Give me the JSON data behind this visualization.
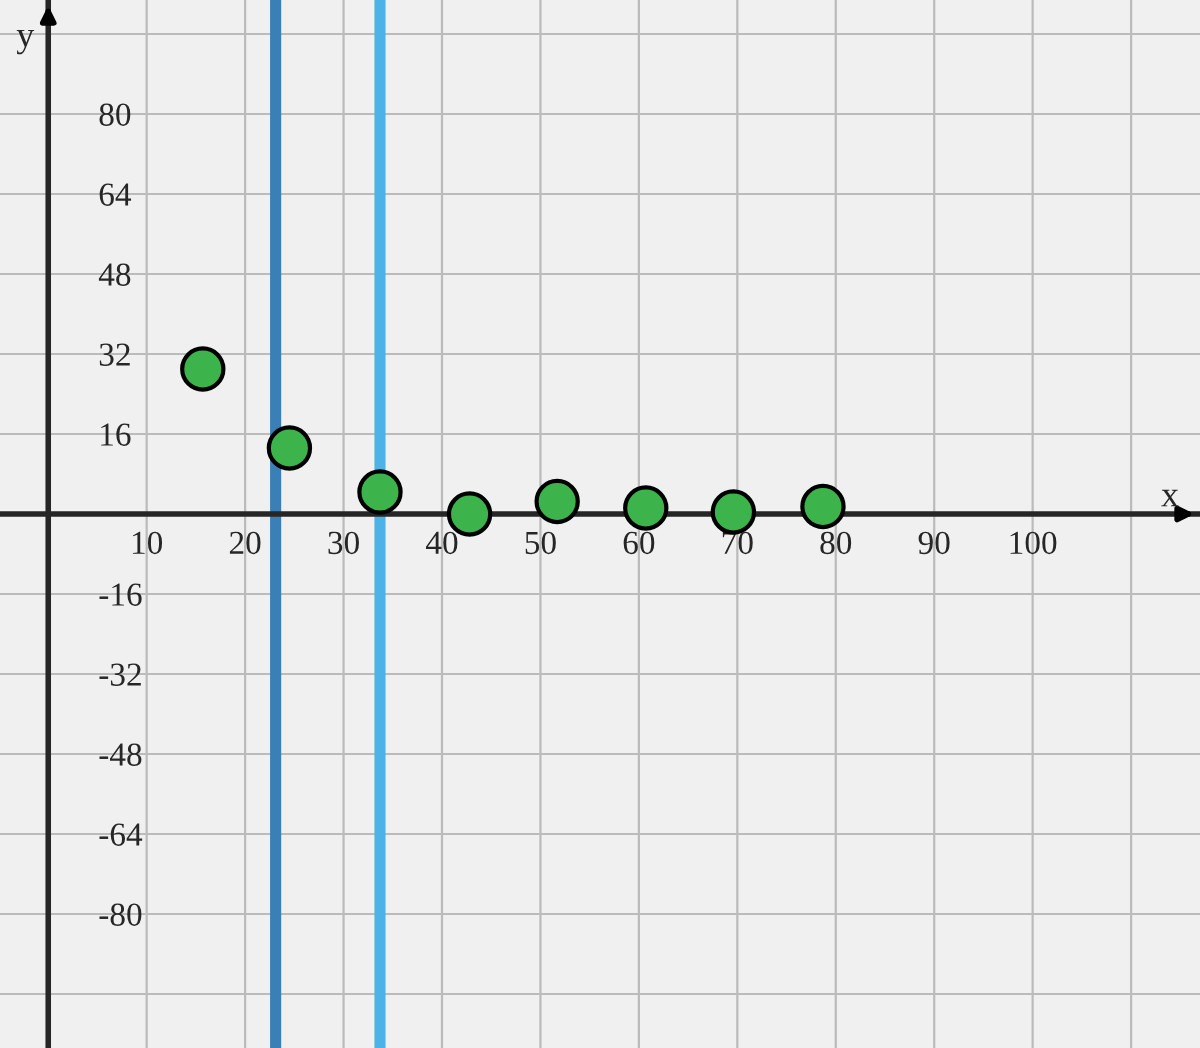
{
  "chart_data": {
    "type": "scatter",
    "xlabel": "x",
    "ylabel": "y",
    "x": [
      15.7,
      24.5,
      33.7,
      42.8,
      51.7,
      60.7,
      69.6,
      78.7
    ],
    "series": [
      {
        "color": "#3cb44b",
        "values": [
          29,
          13.2,
          4.4,
          0,
          2.5,
          1.2,
          0.4,
          1.5
        ]
      }
    ],
    "xlim": [
      -4.9,
      117
    ],
    "ylim": [
      -106.8,
      102.8
    ],
    "xticks": [
      10,
      20,
      30,
      40,
      50,
      60,
      70,
      80,
      90,
      100,
      {
        "value": 110,
        "label": null
      }
    ],
    "yticks": [
      {
        "value": -96,
        "label": null
      },
      -80,
      -64,
      -48,
      -32,
      -16,
      16,
      32,
      48,
      64,
      80,
      {
        "value": 96,
        "label": null
      }
    ],
    "ref_lines": [
      {
        "axis": "x",
        "value": 23.1,
        "color": "#3a7fb5"
      },
      {
        "axis": "x",
        "value": 33.7,
        "color": "#4db3e6"
      }
    ],
    "grid": true,
    "marker": "circle"
  }
}
